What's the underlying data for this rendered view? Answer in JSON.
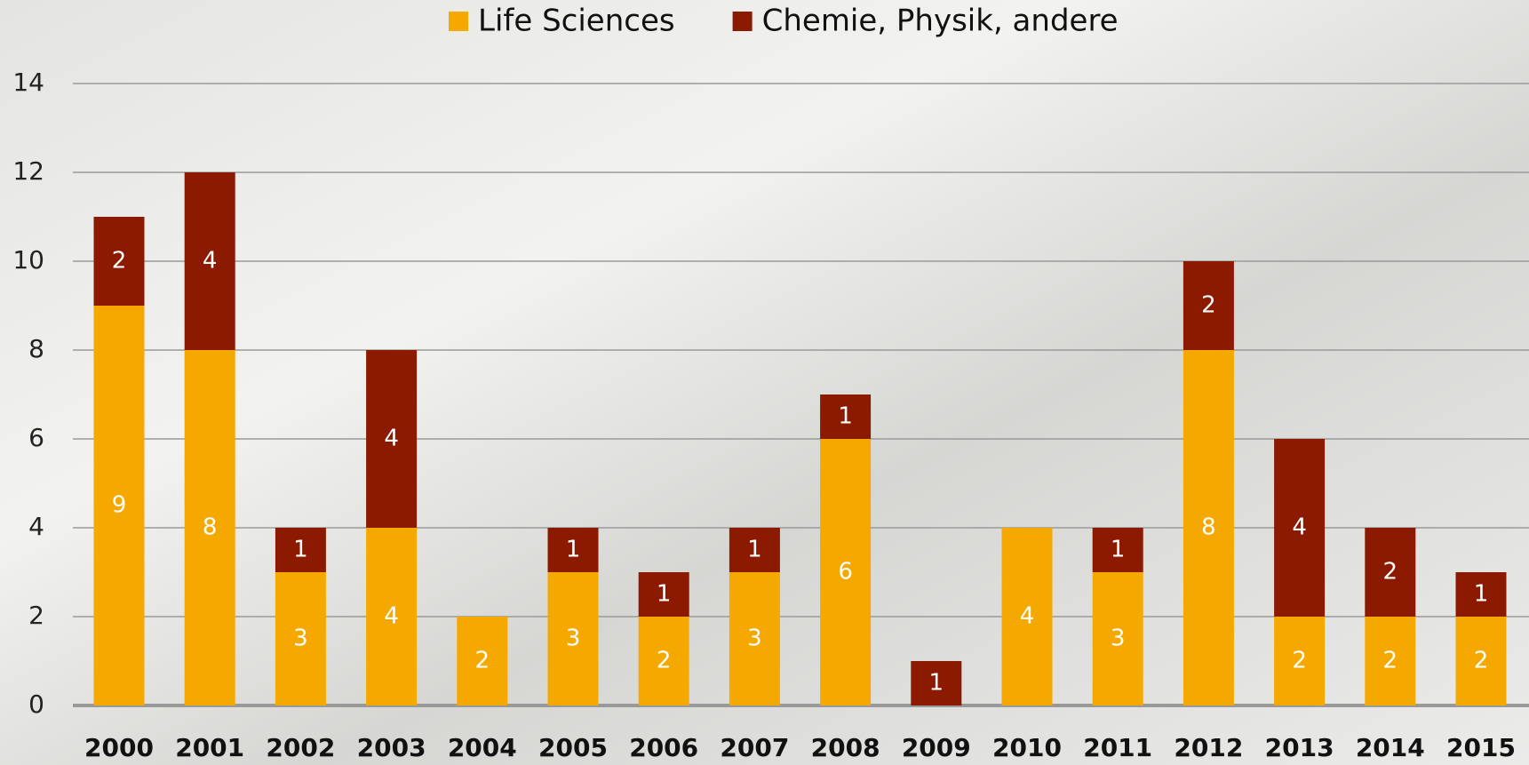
{
  "chart_data": {
    "type": "stacked_bar",
    "categories": [
      "2000",
      "2001",
      "2002",
      "2003",
      "2004",
      "2005",
      "2006",
      "2007",
      "2008",
      "2009",
      "2010",
      "2011",
      "2012",
      "2013",
      "2014",
      "2015"
    ],
    "series": [
      {
        "name": "Life Sciences",
        "color": "#f5a800",
        "values": [
          9,
          8,
          3,
          4,
          2,
          3,
          2,
          3,
          6,
          0,
          4,
          3,
          8,
          2,
          2,
          2
        ]
      },
      {
        "name": "Chemie, Physik, andere",
        "color": "#8b1a00",
        "values": [
          2,
          4,
          1,
          4,
          0,
          1,
          1,
          1,
          1,
          1,
          0,
          1,
          2,
          4,
          2,
          1
        ]
      }
    ],
    "ylim": [
      0,
      14
    ],
    "yticks": [
      0,
      2,
      4,
      6,
      8,
      10,
      12,
      14
    ],
    "grid": true,
    "legend": "top"
  }
}
